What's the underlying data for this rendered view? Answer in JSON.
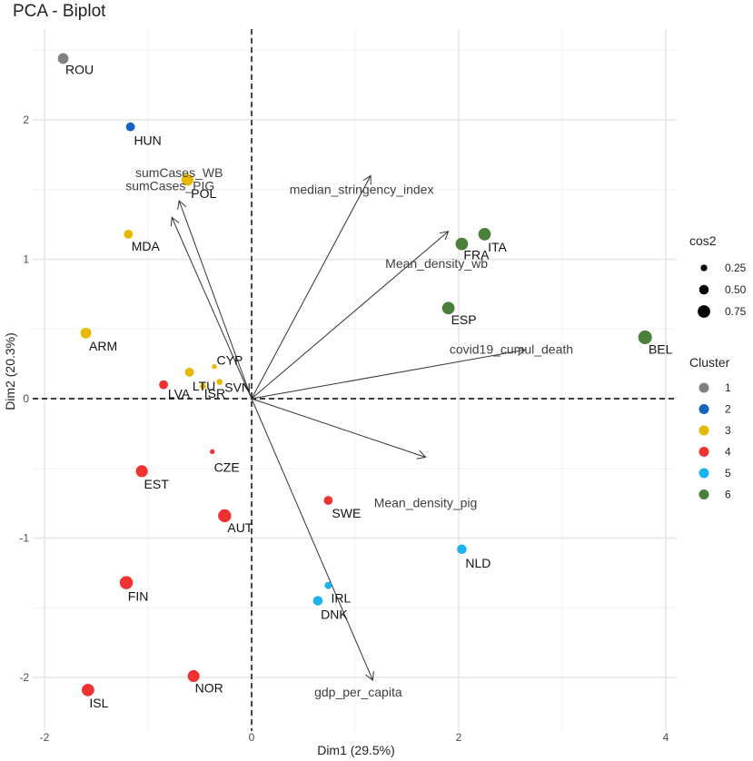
{
  "chart_data": {
    "type": "scatter",
    "title": "PCA - Biplot",
    "xlabel": "Dim1 (29.5%)",
    "ylabel": "Dim2 (20.3%)",
    "xlim": [
      -2.05,
      4.1
    ],
    "ylim": [
      -2.2,
      2.6
    ],
    "xticks": [
      -2,
      0,
      2,
      4
    ],
    "yticks": [
      -2,
      -1,
      0,
      1,
      2
    ],
    "grid": true,
    "colors": {
      "1": "#808080",
      "2": "#1565c0",
      "3": "#e6b800",
      "4": "#f03232",
      "5": "#1ab2f0",
      "6": "#4a7f3c"
    },
    "points": [
      {
        "label": "ROU",
        "x": -1.82,
        "y": 2.44,
        "cluster": "1",
        "cos2": 0.6
      },
      {
        "label": "HUN",
        "x": -1.17,
        "y": 1.95,
        "cluster": "2",
        "cos2": 0.45
      },
      {
        "label": "POL",
        "x": -0.62,
        "y": 1.57,
        "cluster": "3",
        "cos2": 0.7
      },
      {
        "label": "MDA",
        "x": -1.19,
        "y": 1.18,
        "cluster": "3",
        "cos2": 0.45
      },
      {
        "label": "ARM",
        "x": -1.6,
        "y": 0.47,
        "cluster": "3",
        "cos2": 0.6
      },
      {
        "label": "LTU",
        "x": -0.6,
        "y": 0.19,
        "cluster": "3",
        "cos2": 0.45
      },
      {
        "label": "CYP",
        "x": -0.36,
        "y": 0.23,
        "cluster": "3",
        "cos2": 0.1
      },
      {
        "label": "SVN",
        "x": -0.31,
        "y": 0.12,
        "cluster": "3",
        "cos2": 0.2
      },
      {
        "label": "ISR",
        "x": -0.47,
        "y": 0.09,
        "cluster": "3",
        "cos2": 0.2
      },
      {
        "label": "LVA",
        "x": -0.85,
        "y": 0.1,
        "cluster": "4",
        "cos2": 0.45
      },
      {
        "label": "CZE",
        "x": -0.38,
        "y": -0.38,
        "cluster": "4",
        "cos2": 0.1
      },
      {
        "label": "EST",
        "x": -1.06,
        "y": -0.52,
        "cluster": "4",
        "cos2": 0.7
      },
      {
        "label": "AUT",
        "x": -0.26,
        "y": -0.84,
        "cluster": "4",
        "cos2": 0.8
      },
      {
        "label": "SWE",
        "x": 0.74,
        "y": -0.73,
        "cluster": "4",
        "cos2": 0.45
      },
      {
        "label": "FIN",
        "x": -1.21,
        "y": -1.32,
        "cluster": "4",
        "cos2": 0.8
      },
      {
        "label": "NOR",
        "x": -0.56,
        "y": -1.99,
        "cluster": "4",
        "cos2": 0.7
      },
      {
        "label": "ISL",
        "x": -1.58,
        "y": -2.09,
        "cluster": "4",
        "cos2": 0.75
      },
      {
        "label": "NLD",
        "x": 2.03,
        "y": -1.08,
        "cluster": "5",
        "cos2": 0.5
      },
      {
        "label": "IRL",
        "x": 0.74,
        "y": -1.34,
        "cluster": "5",
        "cos2": 0.3
      },
      {
        "label": "DNK",
        "x": 0.64,
        "y": -1.45,
        "cluster": "5",
        "cos2": 0.5
      },
      {
        "label": "ITA",
        "x": 2.25,
        "y": 1.18,
        "cluster": "6",
        "cos2": 0.75
      },
      {
        "label": "FRA",
        "x": 2.03,
        "y": 1.11,
        "cluster": "6",
        "cos2": 0.75
      },
      {
        "label": "ESP",
        "x": 1.9,
        "y": 0.65,
        "cluster": "6",
        "cos2": 0.75
      },
      {
        "label": "BEL",
        "x": 3.8,
        "y": 0.44,
        "cluster": "6",
        "cos2": 0.85
      }
    ],
    "variables": [
      {
        "label": "sumCases_WB",
        "x": -0.7,
        "y": 1.42
      },
      {
        "label": "sumCases_PIG",
        "x": -0.77,
        "y": 1.3
      },
      {
        "label": "median_stringency_index",
        "x": 1.15,
        "y": 1.6
      },
      {
        "label": "Mean_density_wb",
        "x": 1.9,
        "y": 1.2
      },
      {
        "label": "covid19_cumul_death",
        "x": 2.64,
        "y": 0.35
      },
      {
        "label": "Mean_density_pig",
        "x": 1.68,
        "y": -0.42
      },
      {
        "label": "gdp_per_capita",
        "x": 1.17,
        "y": -2.02
      }
    ],
    "legend": {
      "cos2_title": "cos2",
      "cos2_levels": [
        "0.25",
        "0.50",
        "0.75"
      ],
      "cluster_title": "Cluster",
      "clusters": [
        "1",
        "2",
        "3",
        "4",
        "5",
        "6"
      ]
    }
  }
}
